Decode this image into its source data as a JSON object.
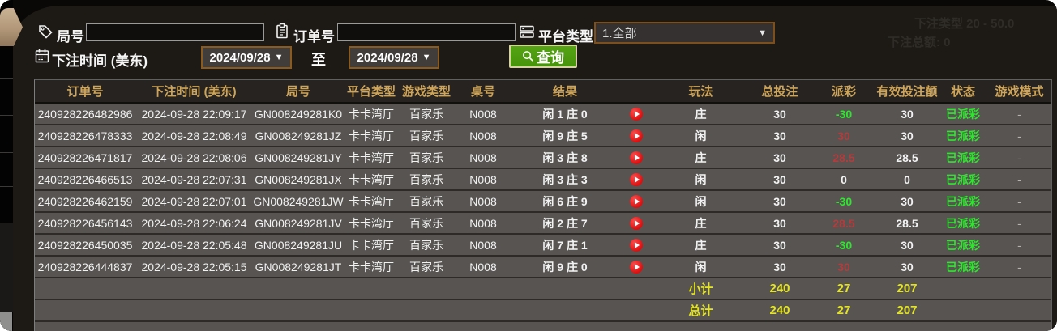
{
  "filters": {
    "game_no_label": "局号",
    "game_no_value": "",
    "order_no_label": "订单号",
    "order_no_value": "",
    "platform_type_label": "平台类型",
    "platform_type_value": "1.全部",
    "bet_time_label": "下注时间 (美东)",
    "date_from": "2024/09/28",
    "date_to": "2024/09/28",
    "to_label": "至",
    "query_label": "查询"
  },
  "ghost": {
    "line1": "下注类型 20 - 50.0",
    "line2": "下注总额: 0"
  },
  "table": {
    "headers": [
      "订单号",
      "下注时间 (美东)",
      "局号",
      "平台类型",
      "游戏类型",
      "桌号",
      "结果",
      "",
      "玩法",
      "总投注",
      "派彩",
      "有效投注额",
      "状态",
      "游戏模式"
    ],
    "rows": [
      {
        "order_no": "240928226482986",
        "bet_time": "2024-09-28 22:09:17",
        "game_no": "GN008249281K0",
        "platform": "卡卡湾厅",
        "game_type": "百家乐",
        "table_no": "N008",
        "result": "闲 1 庄 0",
        "wager": "庄",
        "total_bet": "30",
        "payout": "-30",
        "payout_tone": "neg",
        "valid_bet": "30",
        "status": "已派彩",
        "game_mode": "-"
      },
      {
        "order_no": "240928226478333",
        "bet_time": "2024-09-28 22:08:49",
        "game_no": "GN008249281JZ",
        "platform": "卡卡湾厅",
        "game_type": "百家乐",
        "table_no": "N008",
        "result": "闲 9 庄 5",
        "wager": "闲",
        "total_bet": "30",
        "payout": "30",
        "payout_tone": "pos",
        "valid_bet": "30",
        "status": "已派彩",
        "game_mode": "-"
      },
      {
        "order_no": "240928226471817",
        "bet_time": "2024-09-28 22:08:06",
        "game_no": "GN008249281JY",
        "platform": "卡卡湾厅",
        "game_type": "百家乐",
        "table_no": "N008",
        "result": "闲 3 庄 8",
        "wager": "庄",
        "total_bet": "30",
        "payout": "28.5",
        "payout_tone": "pos",
        "valid_bet": "28.5",
        "status": "已派彩",
        "game_mode": "-"
      },
      {
        "order_no": "240928226466513",
        "bet_time": "2024-09-28 22:07:31",
        "game_no": "GN008249281JX",
        "platform": "卡卡湾厅",
        "game_type": "百家乐",
        "table_no": "N008",
        "result": "闲 3 庄 3",
        "wager": "闲",
        "total_bet": "30",
        "payout": "0",
        "payout_tone": "zero",
        "valid_bet": "0",
        "status": "已派彩",
        "game_mode": "-"
      },
      {
        "order_no": "240928226462159",
        "bet_time": "2024-09-28 22:07:01",
        "game_no": "GN008249281JW",
        "platform": "卡卡湾厅",
        "game_type": "百家乐",
        "table_no": "N008",
        "result": "闲 6 庄 9",
        "wager": "闲",
        "total_bet": "30",
        "payout": "-30",
        "payout_tone": "neg",
        "valid_bet": "30",
        "status": "已派彩",
        "game_mode": "-"
      },
      {
        "order_no": "240928226456143",
        "bet_time": "2024-09-28 22:06:24",
        "game_no": "GN008249281JV",
        "platform": "卡卡湾厅",
        "game_type": "百家乐",
        "table_no": "N008",
        "result": "闲 2 庄 7",
        "wager": "庄",
        "total_bet": "30",
        "payout": "28.5",
        "payout_tone": "pos",
        "valid_bet": "28.5",
        "status": "已派彩",
        "game_mode": "-"
      },
      {
        "order_no": "240928226450035",
        "bet_time": "2024-09-28 22:05:48",
        "game_no": "GN008249281JU",
        "platform": "卡卡湾厅",
        "game_type": "百家乐",
        "table_no": "N008",
        "result": "闲 7 庄 1",
        "wager": "庄",
        "total_bet": "30",
        "payout": "-30",
        "payout_tone": "neg",
        "valid_bet": "30",
        "status": "已派彩",
        "game_mode": "-"
      },
      {
        "order_no": "240928226444837",
        "bet_time": "2024-09-28 22:05:15",
        "game_no": "GN008249281JT",
        "platform": "卡卡湾厅",
        "game_type": "百家乐",
        "table_no": "N008",
        "result": "闲 9 庄 0",
        "wager": "闲",
        "total_bet": "30",
        "payout": "30",
        "payout_tone": "pos",
        "valid_bet": "30",
        "status": "已派彩",
        "game_mode": "-"
      }
    ],
    "subtotal": {
      "label": "小计",
      "total_bet": "240",
      "payout": "27",
      "valid_bet": "207"
    },
    "grand_total": {
      "label": "总计",
      "total_bet": "240",
      "payout": "27",
      "valid_bet": "207"
    }
  },
  "colors": {
    "header_gold": "#cfa55a",
    "win_red": "#b43c3c",
    "loss_green": "#2ee62e",
    "summary_yellow": "#e4e520",
    "query_green": "#47930b",
    "border_brown": "#8a5a1e",
    "row_gray": "#575452"
  }
}
